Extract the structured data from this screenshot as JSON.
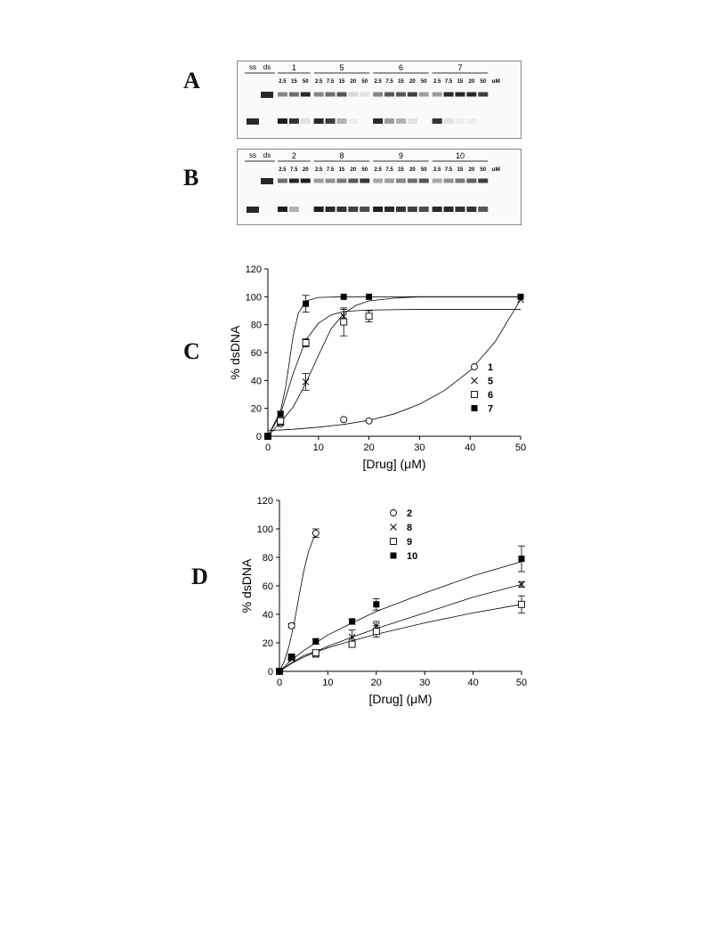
{
  "panels": {
    "A": "A",
    "B": "B",
    "C": "C",
    "D": "D"
  },
  "gel_A": {
    "ref_labels": [
      "ss",
      "ds"
    ],
    "groups": [
      {
        "label": "1",
        "concs": [
          "2.5",
          "15",
          "50"
        ]
      },
      {
        "label": "5",
        "concs": [
          "2.5",
          "7.5",
          "15",
          "20",
          "50"
        ]
      },
      {
        "label": "6",
        "concs": [
          "2.5",
          "7.5",
          "15",
          "20",
          "50"
        ]
      },
      {
        "label": "7",
        "concs": [
          "2.5",
          "7.5",
          "15",
          "20",
          "50"
        ]
      }
    ],
    "unit": "uM"
  },
  "gel_B": {
    "ref_labels": [
      "ss",
      "ds"
    ],
    "groups": [
      {
        "label": "2",
        "concs": [
          "2.5",
          "7.5",
          "20"
        ]
      },
      {
        "label": "8",
        "concs": [
          "2.5",
          "7.5",
          "15",
          "20",
          "50"
        ]
      },
      {
        "label": "9",
        "concs": [
          "2.5",
          "7.5",
          "15",
          "20",
          "50"
        ]
      },
      {
        "label": "10",
        "concs": [
          "2.5",
          "7.5",
          "15",
          "20",
          "50"
        ]
      }
    ],
    "unit": "uM"
  },
  "chart_data": [
    {
      "type": "scatter",
      "panel": "C",
      "xlabel": "[Drug] (μM)",
      "ylabel": "% dsDNA",
      "xlim": [
        0,
        50
      ],
      "ylim": [
        0,
        120
      ],
      "xticks": [
        0,
        10,
        20,
        30,
        40,
        50
      ],
      "yticks": [
        0,
        20,
        40,
        60,
        80,
        100,
        120
      ],
      "legend_position": "center-right",
      "series": [
        {
          "name": "1",
          "marker": "open-circle",
          "x": [
            0,
            2.5,
            15,
            20
          ],
          "y": [
            0,
            9,
            12,
            11
          ],
          "err": [
            0,
            1,
            0,
            0
          ],
          "fit": [
            [
              0,
              4
            ],
            [
              5,
              5
            ],
            [
              10,
              6.5
            ],
            [
              15,
              8.5
            ],
            [
              20,
              11.5
            ],
            [
              25,
              16
            ],
            [
              30,
              23
            ],
            [
              35,
              33
            ],
            [
              40,
              47
            ],
            [
              45,
              68
            ],
            [
              50,
              98
            ]
          ]
        },
        {
          "name": "5",
          "marker": "cross",
          "x": [
            0,
            2.5,
            7.5,
            15,
            50
          ],
          "y": [
            0,
            10,
            39,
            86,
            98
          ],
          "err": [
            0,
            2,
            6,
            5,
            0
          ],
          "fit": [
            [
              0,
              0
            ],
            [
              2.5,
              10
            ],
            [
              5,
              21
            ],
            [
              7.5,
              38
            ],
            [
              10,
              58
            ],
            [
              12.5,
              77
            ],
            [
              15,
              88
            ],
            [
              17.5,
              94
            ],
            [
              20,
              97
            ],
            [
              25,
              99
            ],
            [
              30,
              100
            ],
            [
              50,
              100
            ]
          ]
        },
        {
          "name": "6",
          "marker": "open-square",
          "x": [
            0,
            2.5,
            7.5,
            15,
            20
          ],
          "y": [
            0,
            11,
            67,
            82,
            86
          ],
          "err": [
            0,
            2,
            3,
            10,
            4
          ],
          "fit": [
            [
              0,
              0
            ],
            [
              2.5,
              16
            ],
            [
              5,
              45
            ],
            [
              7.5,
              69
            ],
            [
              10,
              81
            ],
            [
              12.5,
              87
            ],
            [
              15,
              89.5
            ],
            [
              20,
              90.5
            ],
            [
              30,
              91
            ],
            [
              50,
              91
            ]
          ]
        },
        {
          "name": "7",
          "marker": "filled-square",
          "x": [
            0,
            2.5,
            7.5,
            15,
            20,
            50
          ],
          "y": [
            0,
            16,
            95,
            100,
            100,
            100
          ],
          "err": [
            0,
            2,
            6,
            0,
            0,
            0
          ],
          "fit": [
            [
              0,
              0
            ],
            [
              2.5,
              18
            ],
            [
              3.5,
              35
            ],
            [
              5,
              72
            ],
            [
              6,
              88
            ],
            [
              7.5,
              97
            ],
            [
              10,
              99.5
            ],
            [
              15,
              100
            ],
            [
              50,
              100
            ]
          ]
        }
      ]
    },
    {
      "type": "scatter",
      "panel": "D",
      "xlabel": "[Drug] (μM)",
      "ylabel": "% dsDNA",
      "xlim": [
        0,
        50
      ],
      "ylim": [
        0,
        120
      ],
      "xticks": [
        0,
        10,
        20,
        30,
        40,
        50
      ],
      "yticks": [
        0,
        20,
        40,
        60,
        80,
        100,
        120
      ],
      "legend_position": "top-center",
      "series": [
        {
          "name": "2",
          "marker": "open-circle",
          "x": [
            0,
            2.5,
            7.5
          ],
          "y": [
            0,
            32,
            97
          ],
          "err": [
            0,
            1.5,
            3
          ],
          "fit": [
            [
              0,
              0
            ],
            [
              1,
              7
            ],
            [
              2,
              18
            ],
            [
              3,
              33
            ],
            [
              4,
              52
            ],
            [
              5,
              70
            ],
            [
              6,
              84
            ],
            [
              7,
              93
            ],
            [
              7.5,
              96
            ]
          ]
        },
        {
          "name": "8",
          "marker": "cross",
          "x": [
            0,
            2.5,
            7.5,
            15,
            20,
            50
          ],
          "y": [
            0,
            9,
            12,
            24,
            32,
            61
          ],
          "err": [
            0,
            1,
            2,
            5,
            3,
            2
          ],
          "fit": [
            [
              0,
              0
            ],
            [
              2.5,
              6
            ],
            [
              5,
              11
            ],
            [
              7.5,
              14
            ],
            [
              10,
              17.5
            ],
            [
              15,
              24
            ],
            [
              20,
              30
            ],
            [
              30,
              41
            ],
            [
              40,
              52
            ],
            [
              50,
              61
            ]
          ]
        },
        {
          "name": "9",
          "marker": "open-square",
          "x": [
            0,
            2.5,
            7.5,
            15,
            20,
            50
          ],
          "y": [
            0,
            10,
            13,
            19,
            28,
            47
          ],
          "err": [
            0,
            1,
            2,
            2,
            4,
            6
          ],
          "fit": [
            [
              0,
              0
            ],
            [
              2.5,
              5.5
            ],
            [
              5,
              10
            ],
            [
              7.5,
              13.5
            ],
            [
              10,
              16.5
            ],
            [
              15,
              21.5
            ],
            [
              20,
              26
            ],
            [
              30,
              34
            ],
            [
              40,
              41
            ],
            [
              50,
              47
            ]
          ]
        },
        {
          "name": "10",
          "marker": "filled-square",
          "x": [
            0,
            2.5,
            7.5,
            15,
            20,
            50
          ],
          "y": [
            0,
            10,
            21,
            35,
            47,
            79
          ],
          "err": [
            0,
            1,
            2,
            2,
            4,
            9
          ],
          "fit": [
            [
              0,
              0
            ],
            [
              2.5,
              8
            ],
            [
              5,
              14.5
            ],
            [
              7.5,
              20
            ],
            [
              10,
              25.5
            ],
            [
              15,
              34
            ],
            [
              20,
              42
            ],
            [
              30,
              55
            ],
            [
              40,
              67
            ],
            [
              50,
              77
            ]
          ]
        }
      ]
    }
  ]
}
